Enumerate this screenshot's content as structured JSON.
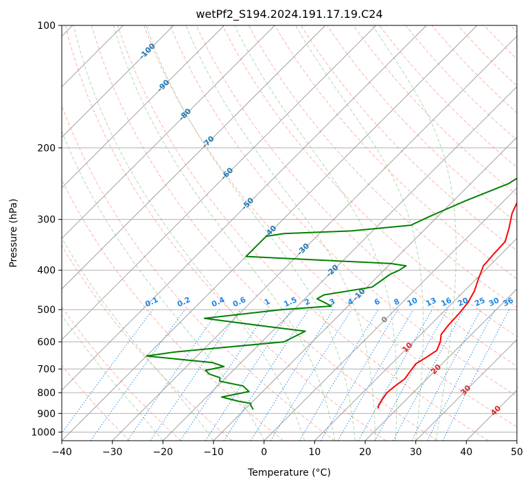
{
  "chart_data": {
    "type": "line",
    "title": "wetPf2_S194.2024.191.17.19.C24",
    "xlabel": "Temperature (°C)",
    "ylabel": "Pressure (hPa)",
    "xlim": [
      -40,
      50
    ],
    "ylim": [
      1050,
      100
    ],
    "y_scale": "log",
    "grid": true,
    "x_ticks": [
      -40,
      -30,
      -20,
      -10,
      0,
      10,
      20,
      30,
      40,
      50
    ],
    "y_ticks": [
      100,
      200,
      300,
      400,
      500,
      600,
      700,
      800,
      900,
      1000
    ],
    "colors": {
      "temperature": "#ff0000",
      "dewpoint": "#008000",
      "dry_adiabat": "#fa8072",
      "moist_adiabat": "#90c890",
      "mixing_ratio": "#1e88e5",
      "isotherm": "#a0a0a0",
      "isotherm_label": "#1f77b4",
      "warm_label": "#d62728"
    },
    "series": [
      {
        "label": "temperature",
        "points": [
          [
            16.2,
            875
          ],
          [
            15.7,
            860
          ],
          [
            15.2,
            830
          ],
          [
            14.8,
            800
          ],
          [
            15.1,
            770
          ],
          [
            15.6,
            740
          ],
          [
            15.2,
            710
          ],
          [
            14.8,
            680
          ],
          [
            15.6,
            655
          ],
          [
            16.3,
            630
          ],
          [
            15.3,
            600
          ],
          [
            14.0,
            575
          ],
          [
            13.6,
            545
          ],
          [
            13.4,
            510
          ],
          [
            13.0,
            480
          ],
          [
            12.0,
            450
          ],
          [
            10.4,
            420
          ],
          [
            8.8,
            390
          ],
          [
            8.5,
            365
          ],
          [
            8.3,
            340
          ],
          [
            6.4,
            315
          ],
          [
            4.1,
            290
          ],
          [
            2.4,
            265
          ],
          [
            0.9,
            240
          ],
          [
            -0.8,
            215
          ],
          [
            -2.1,
            195
          ],
          [
            -3.2,
            178
          ],
          [
            -1.3,
            170
          ],
          [
            3.0,
            160
          ],
          [
            5.5,
            150
          ],
          [
            7.7,
            140
          ],
          [
            10.0,
            130
          ],
          [
            13.8,
            122
          ],
          [
            16.0,
            116
          ],
          [
            17.4,
            110
          ],
          [
            18.9,
            104
          ],
          [
            20.6,
            100
          ]
        ]
      },
      {
        "label": "dewpoint",
        "points": [
          [
            -8.3,
            880
          ],
          [
            -9.6,
            860
          ],
          [
            -10.0,
            850
          ],
          [
            -12.8,
            840
          ],
          [
            -17.0,
            820
          ],
          [
            -12.7,
            795
          ],
          [
            -15.0,
            770
          ],
          [
            -20.5,
            750
          ],
          [
            -21.2,
            735
          ],
          [
            -24.0,
            720
          ],
          [
            -25.5,
            705
          ],
          [
            -22.6,
            690
          ],
          [
            -25.6,
            675
          ],
          [
            -40,
            650
          ],
          [
            -35,
            635
          ],
          [
            -15.6,
            600
          ],
          [
            -13.5,
            565
          ],
          [
            -22.0,
            550
          ],
          [
            -36.0,
            525
          ],
          [
            -22.5,
            500
          ],
          [
            -13.3,
            490
          ],
          [
            -17.6,
            470
          ],
          [
            -17.0,
            460
          ],
          [
            -9.0,
            440
          ],
          [
            -8.0,
            410
          ],
          [
            -7.0,
            400
          ],
          [
            -6.5,
            390
          ],
          [
            -10.0,
            385
          ],
          [
            -40,
            370
          ],
          [
            -40,
            330
          ],
          [
            -37.0,
            325
          ],
          [
            -24.0,
            320
          ],
          [
            -13.6,
            310
          ],
          [
            -11.6,
            295
          ],
          [
            -7.6,
            270
          ],
          [
            -2.5,
            245
          ],
          [
            -1.2,
            230
          ],
          [
            -5.8,
            200
          ],
          [
            -8.2,
            180
          ],
          [
            -9.2,
            165
          ],
          [
            -7.4,
            150
          ],
          [
            -7.1,
            140
          ],
          [
            -7.6,
            130
          ],
          [
            -5.5,
            120
          ],
          [
            -3.8,
            110
          ],
          [
            -0.7,
            100
          ]
        ]
      }
    ],
    "isotherm_labels": [
      -100,
      -90,
      -80,
      -70,
      -60,
      -50,
      -40,
      -30,
      -20,
      -10,
      0,
      10,
      20,
      30,
      40
    ],
    "mixing_ratio_labels": [
      "0.1",
      "0.2",
      "0.4",
      "0.6",
      "1",
      "1.5",
      "2",
      "3",
      "4",
      "6",
      "8",
      "10",
      "13",
      "16",
      "20",
      "25",
      "30",
      "36"
    ],
    "mixing_ratio_values": [
      0.1,
      0.2,
      0.4,
      0.6,
      1,
      1.5,
      2,
      3,
      4,
      6,
      8,
      10,
      13,
      16,
      20,
      25,
      30,
      36
    ]
  }
}
